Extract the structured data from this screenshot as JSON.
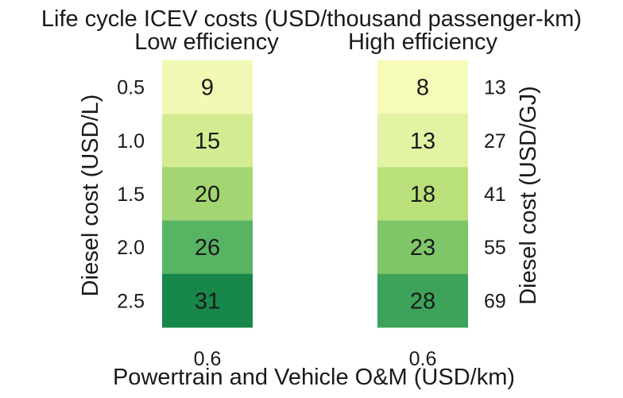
{
  "chart_data": {
    "type": "heatmap",
    "title": "Life cycle ICEV costs (USD/thousand passenger-km)",
    "xlabel": "Powertrain and Vehicle O&M (USD/km)",
    "ylabel_left": "Diesel cost (USD/L)",
    "ylabel_right": "Diesel cost (USD/GJ)",
    "y_ticks_left": [
      "0.5",
      "1.0",
      "1.5",
      "2.0",
      "2.5"
    ],
    "y_ticks_right": [
      "13",
      "27",
      "41",
      "55",
      "69"
    ],
    "panels": [
      {
        "name": "Low efficiency",
        "x_tick": "0.6",
        "values": [
          9,
          15,
          20,
          26,
          31
        ]
      },
      {
        "name": "High efficiency",
        "x_tick": "0.6",
        "values": [
          8,
          13,
          18,
          23,
          28
        ]
      }
    ],
    "colorscale": {
      "name": "YlGn",
      "vmin": 8,
      "vmax": 31,
      "stops": [
        "#f6fbb8",
        "#e5f4a7",
        "#c3e47f",
        "#8fcd6a",
        "#52b262",
        "#17874a"
      ]
    }
  }
}
